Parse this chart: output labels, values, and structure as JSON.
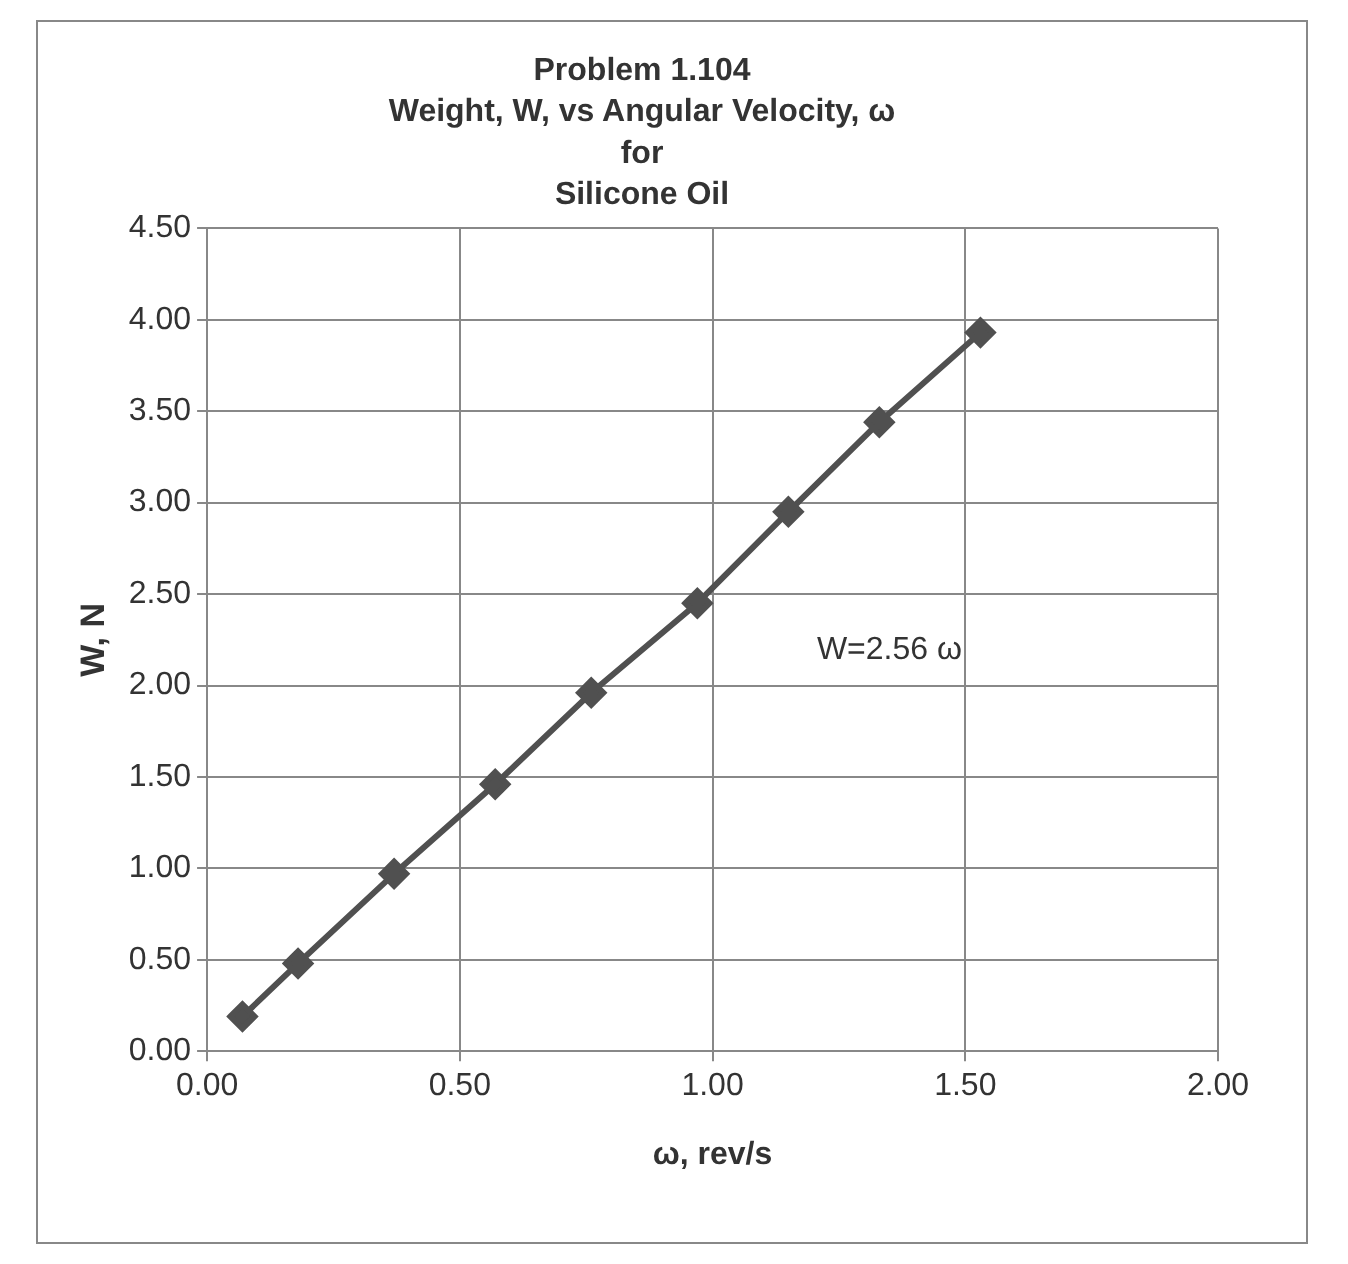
{
  "chart_data": {
    "type": "line",
    "title": "Problem 1.104\nWeight, W, vs Angular Velocity, ω\nfor\nSilicone Oil",
    "xlabel": "ω, rev/s",
    "ylabel": "W, N",
    "x": [
      0.07,
      0.18,
      0.37,
      0.57,
      0.76,
      0.97,
      1.15,
      1.33,
      1.53
    ],
    "series": [
      {
        "color": "#505050",
        "values": [
          0.19,
          0.48,
          0.97,
          1.46,
          1.96,
          2.45,
          2.95,
          3.44,
          3.93
        ]
      }
    ],
    "xlim": [
      0,
      2
    ],
    "xticks": [
      {
        "value": 0,
        "label": "0.00"
      },
      {
        "value": 0.5,
        "label": "0.50"
      },
      {
        "value": 1,
        "label": "1.00"
      },
      {
        "value": 1.5,
        "label": "1.50"
      },
      {
        "value": 2,
        "label": "2.00"
      }
    ],
    "ylim": [
      0,
      4.5
    ],
    "yticks": [
      {
        "value": 0,
        "label": "0.00"
      },
      {
        "value": 0.5,
        "label": "0.50"
      },
      {
        "value": 1,
        "label": "1.00"
      },
      {
        "value": 1.5,
        "label": "1.50"
      },
      {
        "value": 2,
        "label": "2.00"
      },
      {
        "value": 2.5,
        "label": "2.50"
      },
      {
        "value": 3,
        "label": "3.00"
      },
      {
        "value": 3.5,
        "label": "3.50"
      },
      {
        "value": 4,
        "label": "4.00"
      },
      {
        "value": 4.5,
        "label": "4.50"
      }
    ],
    "annotations": [
      "W=2.56 ω"
    ],
    "grid": true,
    "legend": false,
    "marker": "diamond",
    "line_style": "solid"
  }
}
